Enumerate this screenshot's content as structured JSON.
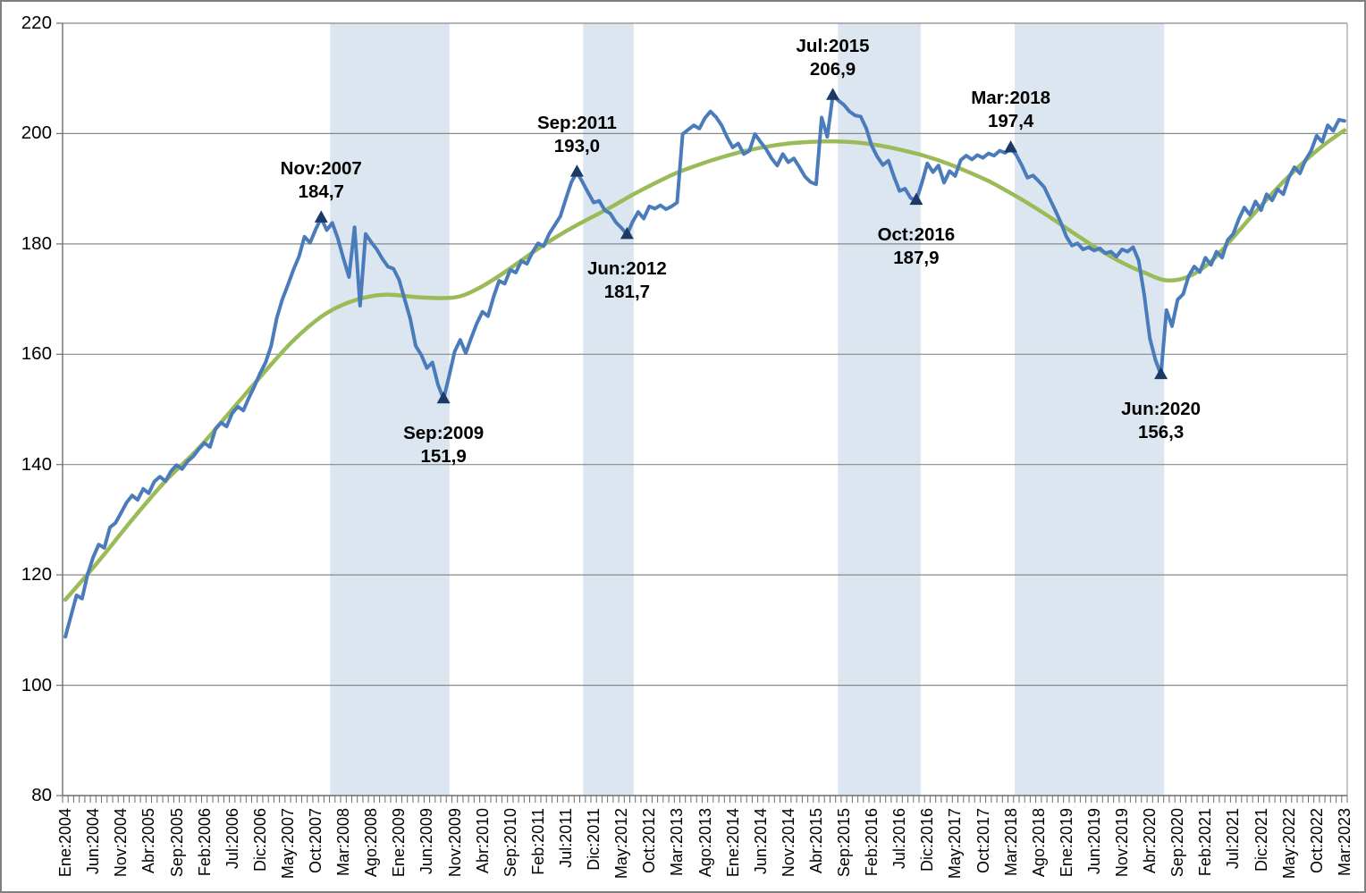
{
  "chart_data": {
    "type": "line",
    "title": "",
    "y_axis": {
      "min": 80,
      "max": 220,
      "tick_step": 20,
      "ticks": [
        80,
        100,
        120,
        140,
        160,
        180,
        200,
        220
      ]
    },
    "x_axis": {
      "total_months": 231,
      "months_per_tick": 5,
      "tick_labels": [
        "Ene:2004",
        "Jun:2004",
        "Nov:2004",
        "Abr:2005",
        "Sep:2005",
        "Feb:2006",
        "Jul:2006",
        "Dic:2006",
        "May:2007",
        "Oct:2007",
        "Mar:2008",
        "Ago:2008",
        "Ene:2009",
        "Jun:2009",
        "Nov:2009",
        "Abr:2010",
        "Sep:2010",
        "Feb:2011",
        "Jul:2011",
        "Dic:2011",
        "May:2012",
        "Oct:2012",
        "Mar:2013",
        "Ago:2013",
        "Ene:2014",
        "Jun:2014",
        "Nov:2014",
        "Abr:2015",
        "Sep:2015",
        "Feb:2016",
        "Jul:2016",
        "Dic:2016",
        "May:2017",
        "Oct:2017",
        "Mar:2018",
        "Ago:2018",
        "Ene:2019",
        "Jun:2019",
        "Nov:2019",
        "Abr:2020",
        "Sep:2020",
        "Feb:2021",
        "Jul:2021",
        "Dic:2021",
        "May:2022",
        "Oct:2022",
        "Mar:2023"
      ]
    },
    "series": [
      {
        "name": "serie-mensual",
        "color": "#4A7BBA",
        "stroke_width": 4,
        "values": [
          108.8,
          112.5,
          116.3,
          115.7,
          120.1,
          123.2,
          125.5,
          124.9,
          128.6,
          129.4,
          131.2,
          133.1,
          134.4,
          133.6,
          135.6,
          134.8,
          136.9,
          137.8,
          137.0,
          138.8,
          139.9,
          139.2,
          140.6,
          141.5,
          142.8,
          143.9,
          143.2,
          146.5,
          147.6,
          146.9,
          149.3,
          150.5,
          149.8,
          152.1,
          154.2,
          156.5,
          158.5,
          161.5,
          166.5,
          169.9,
          172.5,
          175.3,
          177.7,
          181.3,
          180.2,
          182.6,
          184.7,
          182.5,
          183.8,
          181.0,
          177.4,
          174.0,
          183.0,
          168.8,
          181.8,
          180.3,
          179.0,
          177.3,
          175.9,
          175.5,
          173.5,
          170.0,
          166.5,
          161.5,
          159.9,
          157.5,
          158.5,
          154.5,
          151.9,
          156.0,
          160.5,
          162.6,
          160.2,
          163.0,
          165.6,
          167.7,
          166.9,
          170.4,
          173.3,
          172.8,
          175.3,
          174.8,
          176.9,
          176.4,
          178.5,
          180.1,
          179.6,
          181.8,
          183.4,
          185.0,
          188.2,
          191.2,
          193.0,
          191.2,
          189.3,
          187.5,
          187.8,
          186.1,
          185.5,
          183.9,
          182.9,
          181.7,
          184.0,
          185.8,
          184.6,
          186.8,
          186.4,
          187.0,
          186.3,
          186.8,
          187.5,
          199.9,
          200.7,
          201.5,
          200.9,
          202.8,
          204.0,
          203.0,
          201.5,
          199.3,
          197.5,
          198.2,
          196.3,
          196.9,
          199.9,
          198.5,
          197.2,
          195.5,
          194.2,
          196.3,
          194.8,
          195.5,
          193.9,
          192.2,
          191.2,
          190.8,
          202.9,
          199.4,
          206.9,
          206.0,
          205.2,
          204.0,
          203.3,
          203.1,
          201.0,
          197.8,
          195.8,
          194.3,
          195.1,
          192.2,
          189.6,
          190.0,
          188.3,
          187.9,
          191.0,
          194.6,
          193.0,
          194.2,
          191.1,
          193.2,
          192.3,
          195.2,
          196.0,
          195.3,
          196.1,
          195.6,
          196.4,
          196.0,
          196.9,
          196.5,
          197.4,
          196.1,
          194.2,
          192.0,
          192.4,
          191.4,
          190.3,
          188.2,
          186.1,
          183.9,
          181.3,
          179.7,
          180.1,
          179.0,
          179.4,
          178.8,
          179.2,
          178.3,
          178.6,
          177.7,
          179.0,
          178.6,
          179.4,
          177.0,
          170.8,
          162.9,
          159.0,
          156.3,
          168.0,
          165.1,
          169.9,
          170.9,
          174.2,
          175.9,
          174.9,
          177.5,
          176.2,
          178.6,
          177.5,
          180.7,
          181.8,
          184.5,
          186.6,
          185.3,
          187.7,
          186.1,
          189.0,
          187.9,
          189.9,
          189.0,
          192.0,
          193.9,
          192.8,
          195.2,
          196.9,
          199.6,
          198.5,
          201.5,
          200.5,
          202.5,
          202.3
        ]
      },
      {
        "name": "tendencia-suavizada",
        "color": "#9BBB59",
        "stroke_width": 4.5,
        "anchor_points": [
          [
            0,
            115.5
          ],
          [
            6,
            122.5
          ],
          [
            12,
            130.0
          ],
          [
            18,
            137.0
          ],
          [
            24,
            143.0
          ],
          [
            30,
            150.0
          ],
          [
            36,
            157.0
          ],
          [
            41,
            162.5
          ],
          [
            46,
            166.8
          ],
          [
            50,
            169.0
          ],
          [
            54,
            170.3
          ],
          [
            58,
            170.8
          ],
          [
            64,
            170.3
          ],
          [
            70,
            170.3
          ],
          [
            74,
            171.8
          ],
          [
            78,
            174.2
          ],
          [
            82,
            177.0
          ],
          [
            86,
            179.8
          ],
          [
            90,
            182.3
          ],
          [
            94,
            184.5
          ],
          [
            98,
            186.6
          ],
          [
            102,
            188.9
          ],
          [
            106,
            191.0
          ],
          [
            110,
            192.9
          ],
          [
            114,
            194.4
          ],
          [
            118,
            195.7
          ],
          [
            122,
            196.8
          ],
          [
            126,
            197.6
          ],
          [
            130,
            198.2
          ],
          [
            134,
            198.5
          ],
          [
            138,
            198.6
          ],
          [
            142,
            198.4
          ],
          [
            146,
            197.9
          ],
          [
            150,
            197.1
          ],
          [
            154,
            196.1
          ],
          [
            158,
            194.8
          ],
          [
            162,
            193.2
          ],
          [
            166,
            191.4
          ],
          [
            170,
            189.2
          ],
          [
            174,
            186.8
          ],
          [
            178,
            184.2
          ],
          [
            182,
            181.5
          ],
          [
            186,
            178.9
          ],
          [
            190,
            176.6
          ],
          [
            194,
            174.8
          ],
          [
            198,
            173.4
          ],
          [
            202,
            174.1
          ],
          [
            206,
            176.8
          ],
          [
            210,
            181.2
          ],
          [
            214,
            185.8
          ],
          [
            218,
            190.2
          ],
          [
            222,
            194.2
          ],
          [
            226,
            197.7
          ],
          [
            230,
            200.6
          ]
        ]
      }
    ],
    "shaded_bands": {
      "color": "#DCE6F1",
      "month_ranges": [
        [
          47.6,
          69.1
        ],
        [
          93.1,
          102.2
        ],
        [
          138.9,
          153.8
        ],
        [
          170.7,
          197.6
        ]
      ]
    },
    "annotations": [
      {
        "date": "Nov:2007",
        "value": "184,7",
        "month": 46,
        "y": 184.7,
        "position": "above"
      },
      {
        "date": "Sep:2009",
        "value": "151,9",
        "month": 68,
        "y": 151.9,
        "position": "below"
      },
      {
        "date": "Sep:2011",
        "value": "193,0",
        "month": 92,
        "y": 193.0,
        "position": "above"
      },
      {
        "date": "Jun:2012",
        "value": "181,7",
        "month": 101,
        "y": 181.7,
        "position": "below"
      },
      {
        "date": "Jul:2015",
        "value": "206,9",
        "month": 138,
        "y": 206.9,
        "position": "above"
      },
      {
        "date": "Oct:2016",
        "value": "187,9",
        "month": 153,
        "y": 187.9,
        "position": "below"
      },
      {
        "date": "Mar:2018",
        "value": "197,4",
        "month": 170,
        "y": 197.4,
        "position": "above"
      },
      {
        "date": "Jun:2020",
        "value": "156,3",
        "month": 197,
        "y": 156.3,
        "position": "below"
      }
    ],
    "marker": {
      "color": "#1B3A66",
      "shape": "triangle-up"
    },
    "grid": {
      "gridline_color": "#898989",
      "axis_color": "#6E6E6E",
      "plot_border_color": "#A0A0A0"
    },
    "layout_hints": {
      "legend": "none",
      "gridlines": "horizontal-only"
    }
  }
}
